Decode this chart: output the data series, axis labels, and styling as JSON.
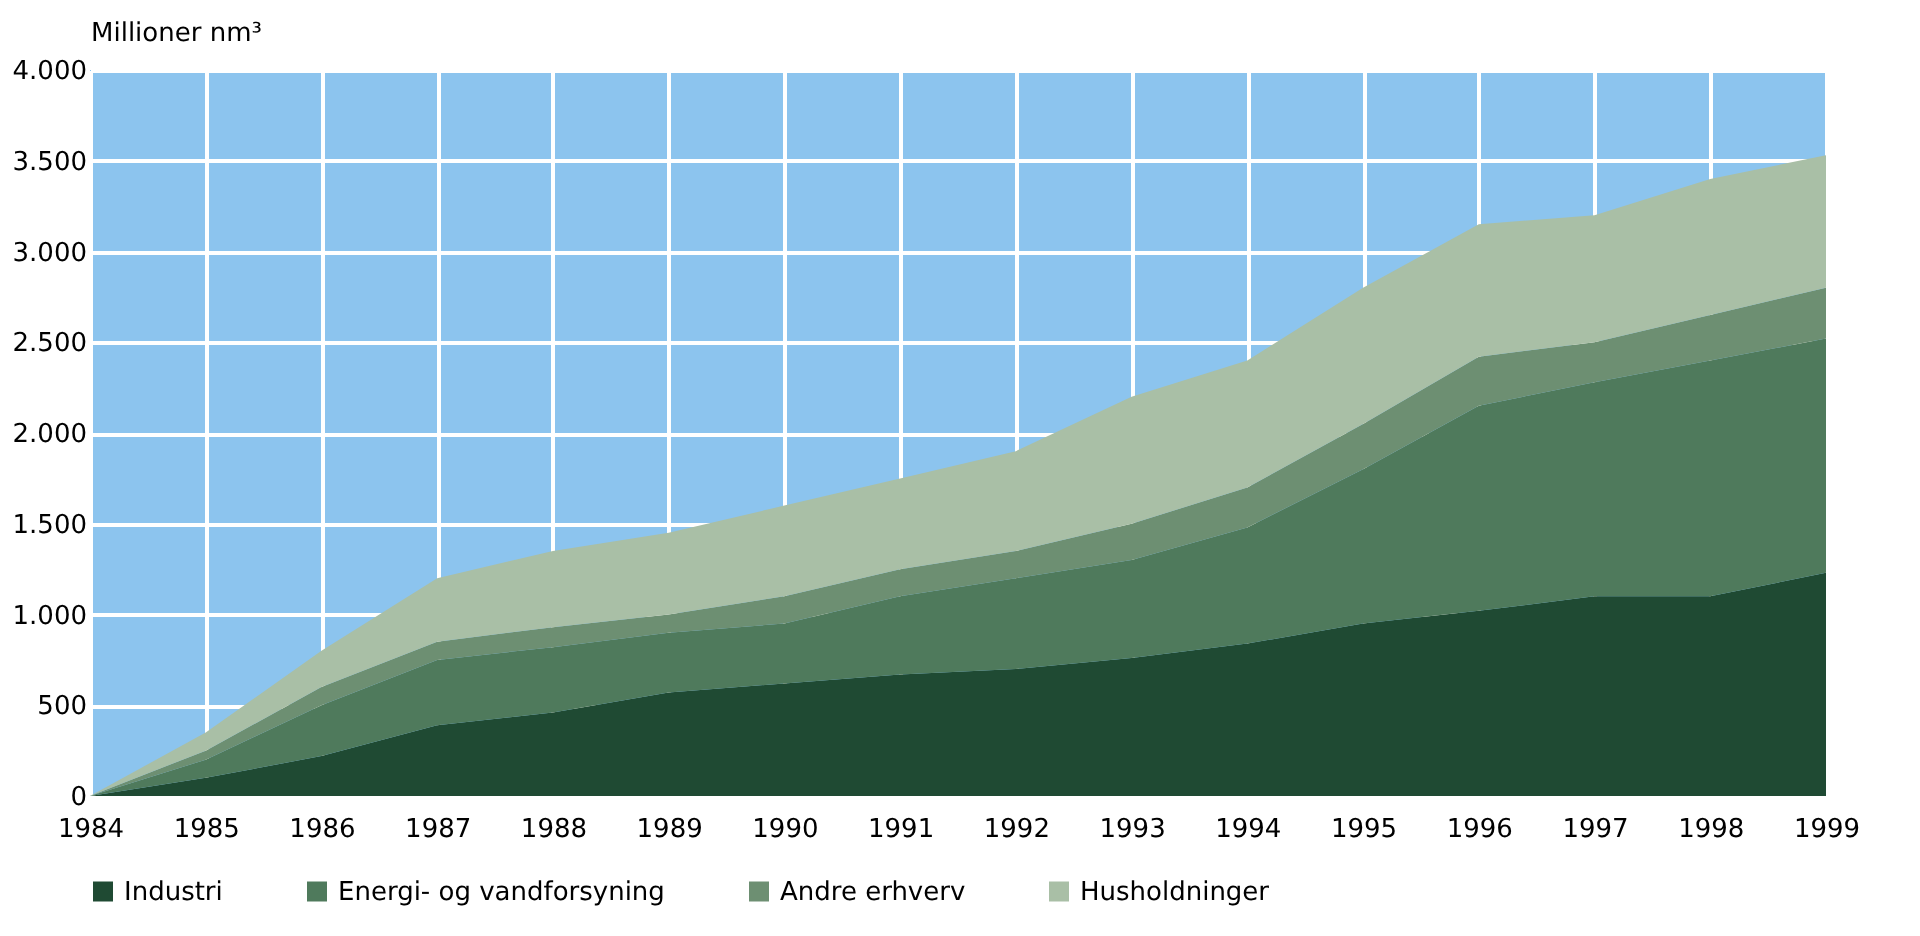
{
  "chart_data": {
    "type": "area",
    "stacked": true,
    "ylabel": "Millioner nm³",
    "x": [
      1984,
      1985,
      1986,
      1987,
      1988,
      1989,
      1990,
      1991,
      1992,
      1993,
      1994,
      1995,
      1996,
      1997,
      1998,
      1999
    ],
    "series": [
      {
        "name": "Industri",
        "color": "#1f4a33",
        "values": [
          0,
          100,
          220,
          390,
          460,
          570,
          620,
          670,
          700,
          760,
          840,
          950,
          1020,
          1100,
          1100,
          1230
        ]
      },
      {
        "name": "Energi- og vandforsyning",
        "color": "#4f7a5c",
        "values": [
          0,
          100,
          280,
          360,
          360,
          330,
          330,
          430,
          500,
          540,
          640,
          850,
          1130,
          1180,
          1300,
          1290
        ]
      },
      {
        "name": "Andre erhverv",
        "color": "#6d8f72",
        "values": [
          0,
          50,
          100,
          100,
          110,
          100,
          150,
          150,
          150,
          200,
          220,
          250,
          270,
          220,
          250,
          280
        ]
      },
      {
        "name": "Husholdninger",
        "color": "#a9bfa6",
        "values": [
          0,
          100,
          200,
          350,
          420,
          450,
          500,
          500,
          550,
          700,
          700,
          750,
          730,
          700,
          750,
          730
        ]
      }
    ],
    "xlim": [
      1984,
      1999
    ],
    "xticks": [
      1984,
      1985,
      1986,
      1987,
      1988,
      1989,
      1990,
      1991,
      1992,
      1993,
      1994,
      1995,
      1996,
      1997,
      1998,
      1999
    ],
    "ylim": [
      0,
      4000
    ],
    "yticks": [
      0,
      500,
      {
        "value": 1000,
        "label": "1.000"
      },
      {
        "value": 1500,
        "label": "1.500"
      },
      {
        "value": 2000,
        "label": "2.000"
      },
      {
        "value": 2500,
        "label": "2.500"
      },
      {
        "value": 3000,
        "label": "3.000"
      },
      {
        "value": 3500,
        "label": "3.500"
      },
      {
        "value": 4000,
        "label": "4.000"
      }
    ],
    "grid": true,
    "legend": "bottom"
  }
}
